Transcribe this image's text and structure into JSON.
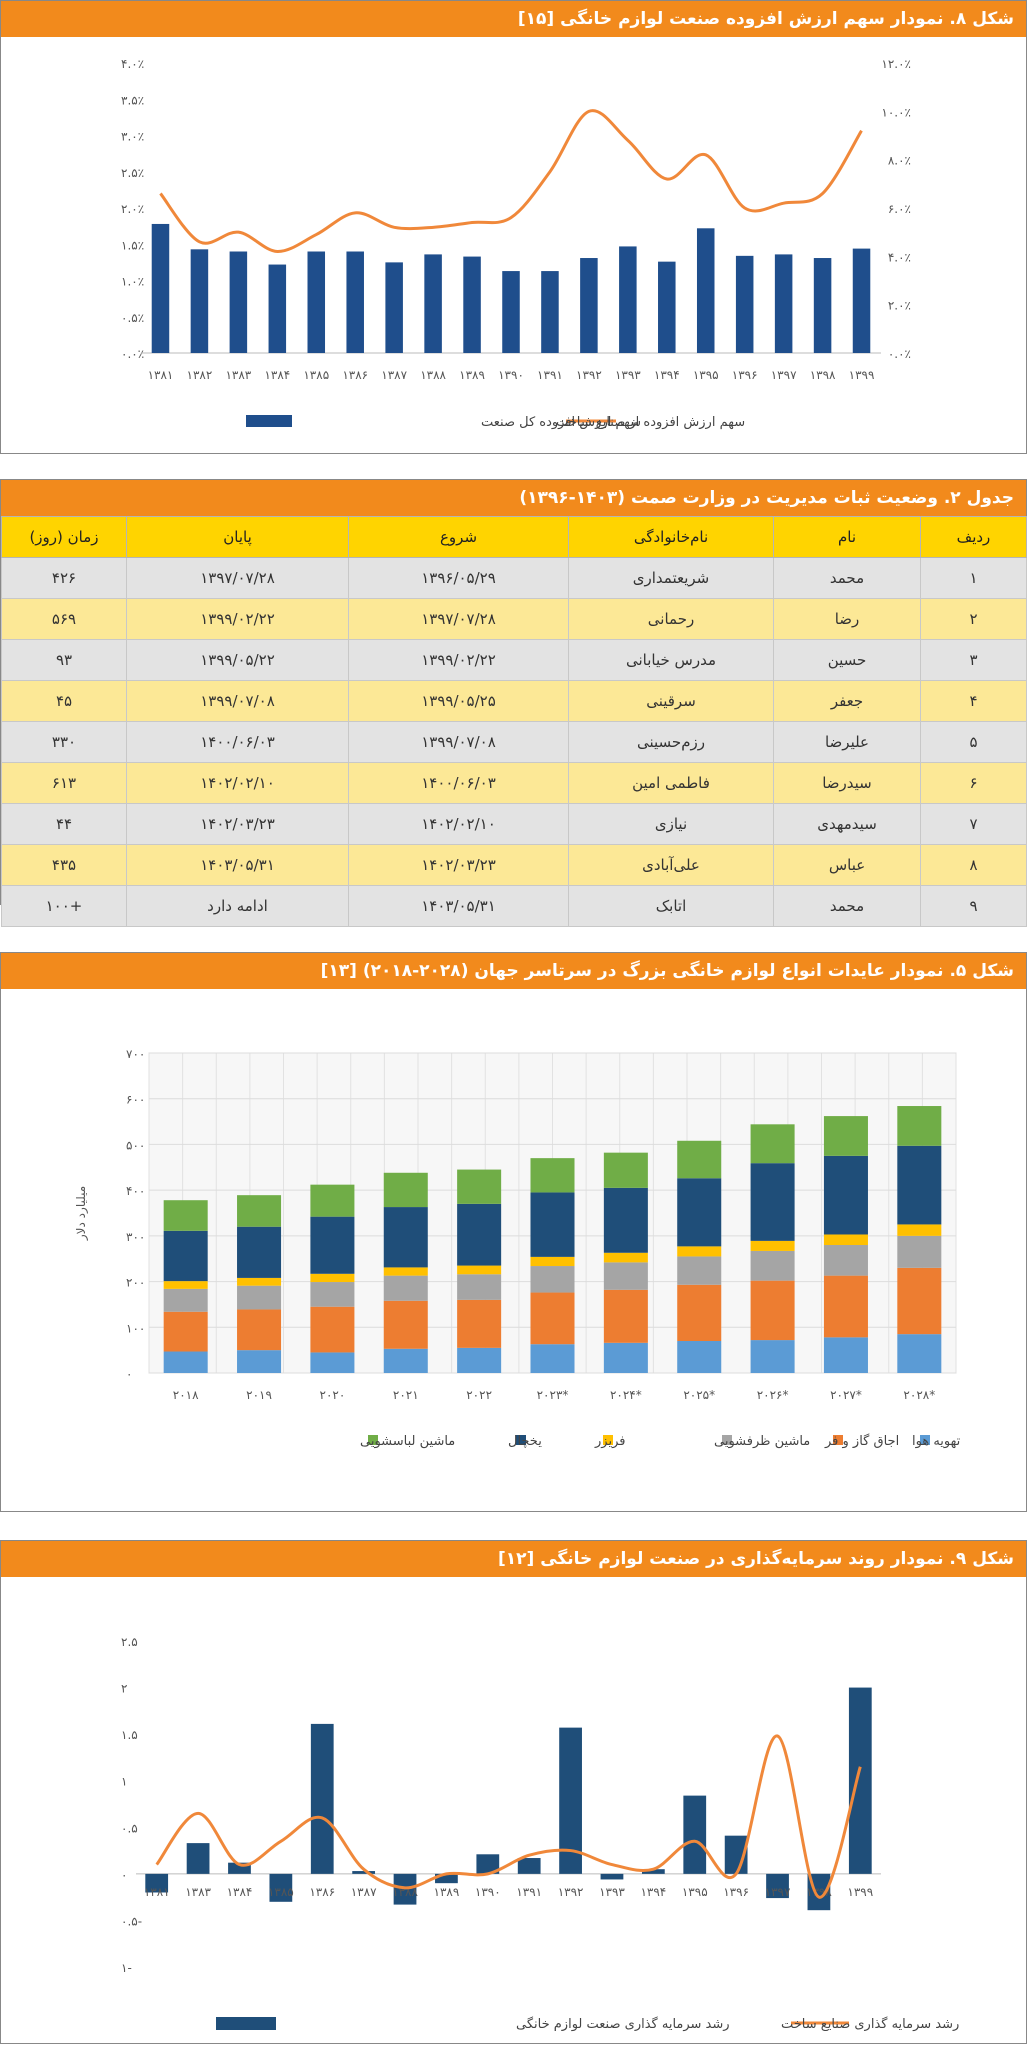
{
  "fig8": {
    "title": "شکل ۸. نمودار سهم ارزش افزوده صنعت لوازم خانگی [۱۵]",
    "chart_data": {
      "type": "bar+line",
      "categories": [
        "۱۳۸۱",
        "۱۳۸۲",
        "۱۳۸۳",
        "۱۳۸۴",
        "۱۳۸۵",
        "۱۳۸۶",
        "۱۳۸۷",
        "۱۳۸۸",
        "۱۳۸۹",
        "۱۳۹۰",
        "۱۳۹۱",
        "۱۳۹۲",
        "۱۳۹۳",
        "۱۳۹۴",
        "۱۳۹۵",
        "۱۳۹۶",
        "۱۳۹۷",
        "۱۳۹۸",
        "۱۳۹۹"
      ],
      "series": [
        {
          "name": "سهم ارزش افزوده کل صنعت",
          "type": "bar",
          "axis": "left",
          "color": "#1f4e8c",
          "values": [
            1.78,
            1.43,
            1.4,
            1.22,
            1.4,
            1.4,
            1.25,
            1.36,
            1.33,
            1.13,
            1.13,
            1.31,
            1.47,
            1.26,
            1.72,
            1.34,
            1.36,
            1.31,
            1.44
          ]
        },
        {
          "name": "سهم ارزش افزوده از صنایع ساخت",
          "type": "line",
          "axis": "right",
          "color": "#f0883a",
          "values": [
            6.6,
            4.6,
            5.0,
            4.2,
            4.9,
            5.8,
            5.2,
            5.2,
            5.4,
            5.6,
            7.5,
            10.0,
            8.8,
            7.2,
            8.2,
            6.0,
            6.2,
            6.6,
            9.2
          ]
        }
      ],
      "yleft": {
        "ticks": [
          "۰.۰٪",
          "۰.۵٪",
          "۱.۰٪",
          "۱.۵٪",
          "۲.۰٪",
          "۲.۵٪",
          "۳.۰٪",
          "۳.۵٪",
          "۴.۰٪"
        ],
        "min": 0,
        "max": 4.0
      },
      "yright": {
        "ticks": [
          "۰.۰٪",
          "۲.۰٪",
          "۴.۰٪",
          "۶.۰٪",
          "۸.۰٪",
          "۱۰.۰٪",
          "۱۲.۰٪"
        ],
        "min": 0,
        "max": 12.0
      },
      "legend_position": "bottom"
    }
  },
  "table2": {
    "title": "جدول ۲. وضعیت ثبات مدیریت در وزارت صمت (۱۴۰۳-۱۳۹۶)",
    "headers": [
      "ردیف",
      "نام",
      "نام‌خانوادگی",
      "شروع",
      "پایان",
      "زمان (روز)"
    ],
    "rows": [
      [
        "۱",
        "محمد",
        "شریعتمداری",
        "۱۳۹۶/۰۵/۲۹",
        "۱۳۹۷/۰۷/۲۸",
        "۴۲۶"
      ],
      [
        "۲",
        "رضا",
        "رحمانی",
        "۱۳۹۷/۰۷/۲۸",
        "۱۳۹۹/۰۲/۲۲",
        "۵۶۹"
      ],
      [
        "۳",
        "حسین",
        "مدرس خیابانی",
        "۱۳۹۹/۰۲/۲۲",
        "۱۳۹۹/۰۵/۲۲",
        "۹۳"
      ],
      [
        "۴",
        "جعفر",
        "سرقینی",
        "۱۳۹۹/۰۵/۲۵",
        "۱۳۹۹/۰۷/۰۸",
        "۴۵"
      ],
      [
        "۵",
        "علیرضا",
        "رزم‌حسینی",
        "۱۳۹۹/۰۷/۰۸",
        "۱۴۰۰/۰۶/۰۳",
        "۳۳۰"
      ],
      [
        "۶",
        "سیدرضا",
        "فاطمی امین",
        "۱۴۰۰/۰۶/۰۳",
        "۱۴۰۲/۰۲/۱۰",
        "۶۱۳"
      ],
      [
        "۷",
        "سیدمهدی",
        "نیازی",
        "۱۴۰۲/۰۲/۱۰",
        "۱۴۰۲/۰۳/۲۳",
        "۴۴"
      ],
      [
        "۸",
        "عباس",
        "علی‌آبادی",
        "۱۴۰۲/۰۳/۲۳",
        "۱۴۰۳/۰۵/۳۱",
        "۴۳۵"
      ],
      [
        "۹",
        "محمد",
        "اتابک",
        "۱۴۰۳/۰۵/۳۱",
        "ادامه دارد",
        "+۱۰۰"
      ]
    ]
  },
  "fig5": {
    "title": "شکل ۵. نمودار عایدات انواع لوازم خانگی بزرگ در سرتاسر جهان (۲۰۲۸-۲۰۱۸) [۱۳]",
    "chart_data": {
      "type": "bar",
      "stacked": true,
      "categories": [
        "۲۰۱۸",
        "۲۰۱۹",
        "۲۰۲۰",
        "۲۰۲۱",
        "۲۰۲۲",
        "*۲۰۲۳",
        "*۲۰۲۴",
        "*۲۰۲۵",
        "*۲۰۲۶",
        "*۲۰۲۷",
        "*۲۰۲۸"
      ],
      "ylabel": "میلیارد دلار",
      "ylim": [
        0,
        700
      ],
      "yticks": [
        "۰",
        "۱۰۰",
        "۲۰۰",
        "۳۰۰",
        "۴۰۰",
        "۵۰۰",
        "۶۰۰",
        "۷۰۰"
      ],
      "series": [
        {
          "name": "تهویه هوا",
          "color": "#5b9bd5",
          "values": [
            47,
            50,
            45,
            53,
            55,
            63,
            66,
            70,
            72,
            78,
            85
          ]
        },
        {
          "name": "اجاق گاز و فر",
          "color": "#ed7d31",
          "values": [
            87,
            89,
            100,
            105,
            105,
            113,
            116,
            123,
            130,
            135,
            145
          ]
        },
        {
          "name": "ماشین ظرفشویی",
          "color": "#a5a5a5",
          "values": [
            50,
            52,
            54,
            55,
            56,
            58,
            60,
            62,
            65,
            67,
            70
          ]
        },
        {
          "name": "فریزر",
          "color": "#ffc000",
          "values": [
            17,
            17,
            18,
            18,
            19,
            20,
            21,
            22,
            22,
            23,
            25
          ]
        },
        {
          "name": "یخچال",
          "color": "#1f4e79",
          "values": [
            110,
            112,
            125,
            132,
            135,
            141,
            142,
            149,
            170,
            172,
            172
          ]
        },
        {
          "name": "ماشین لباسشویی",
          "color": "#70ad47",
          "values": [
            67,
            69,
            70,
            75,
            75,
            75,
            77,
            82,
            85,
            87,
            87
          ]
        }
      ],
      "legend_position": "bottom"
    }
  },
  "fig9": {
    "title": "شکل ۹. نمودار روند سرمایه‌گذاری در صنعت لوازم خانگی [۱۲]",
    "chart_data": {
      "type": "bar+line",
      "categories": [
        "۱۳۸۱",
        "۱۳۸۳",
        "۱۳۸۴",
        "۱۳۸۵",
        "۱۳۸۶",
        "۱۳۸۷",
        "۱۳۸۸",
        "۱۳۸۹",
        "۱۳۹۰",
        "۱۳۹۱",
        "۱۳۹۲",
        "۱۳۹۳",
        "۱۳۹۴",
        "۱۳۹۵",
        "۱۳۹۶",
        "۱۳۹۷",
        "۱۳۹۸",
        "۱۳۹۹"
      ],
      "ylim": [
        -1,
        2.5
      ],
      "yticks": [
        "-۱",
        "-۰.۵",
        "۰",
        "۰.۵",
        "۱",
        "۱.۵",
        "۲",
        "۲.۵"
      ],
      "series": [
        {
          "name": "رشد سرمایه گذاری صنعت لوازم خانگی",
          "type": "bar",
          "color": "#1f4e79",
          "values": [
            -0.2,
            0.33,
            0.12,
            -0.3,
            1.61,
            0.03,
            -0.33,
            -0.1,
            0.21,
            0.17,
            1.57,
            -0.06,
            0.05,
            0.84,
            0.41,
            -0.26,
            -0.39,
            2.0
          ]
        },
        {
          "name": "رشد سرمایه گذاری صنایع ساخت",
          "type": "line",
          "color": "#f0883a",
          "values": [
            0.1,
            0.65,
            0.1,
            0.35,
            0.6,
            0.05,
            -0.15,
            0.0,
            0.0,
            0.2,
            0.25,
            0.1,
            0.05,
            0.35,
            0.0,
            1.48,
            -0.25,
            1.15
          ]
        }
      ],
      "legend_position": "bottom"
    }
  }
}
